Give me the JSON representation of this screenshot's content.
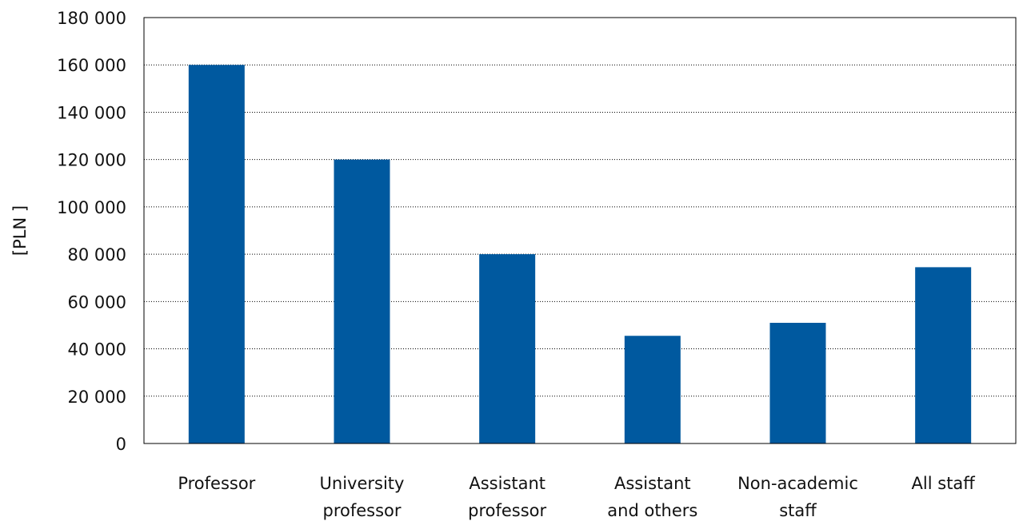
{
  "chart_data": {
    "type": "bar",
    "categories": [
      [
        "Professor"
      ],
      [
        "University",
        "professor"
      ],
      [
        "Assistant",
        "professor"
      ],
      [
        "Assistant",
        "and others"
      ],
      [
        "Non-academic",
        "staff"
      ],
      [
        "All staff"
      ]
    ],
    "values": [
      160000,
      120000,
      80000,
      45500,
      51000,
      74500
    ],
    "ylabel": "[PLN ]",
    "ylim": [
      0,
      180000
    ],
    "yticks": [
      0,
      20000,
      40000,
      60000,
      80000,
      100000,
      120000,
      140000,
      160000,
      180000
    ],
    "ytick_labels": [
      "0",
      "20 000",
      "40 000",
      "60 000",
      "80 000",
      "100 000",
      "120 000",
      "140 000",
      "160 000",
      "180 000"
    ],
    "grid": true,
    "bar_color": "#00599f"
  }
}
